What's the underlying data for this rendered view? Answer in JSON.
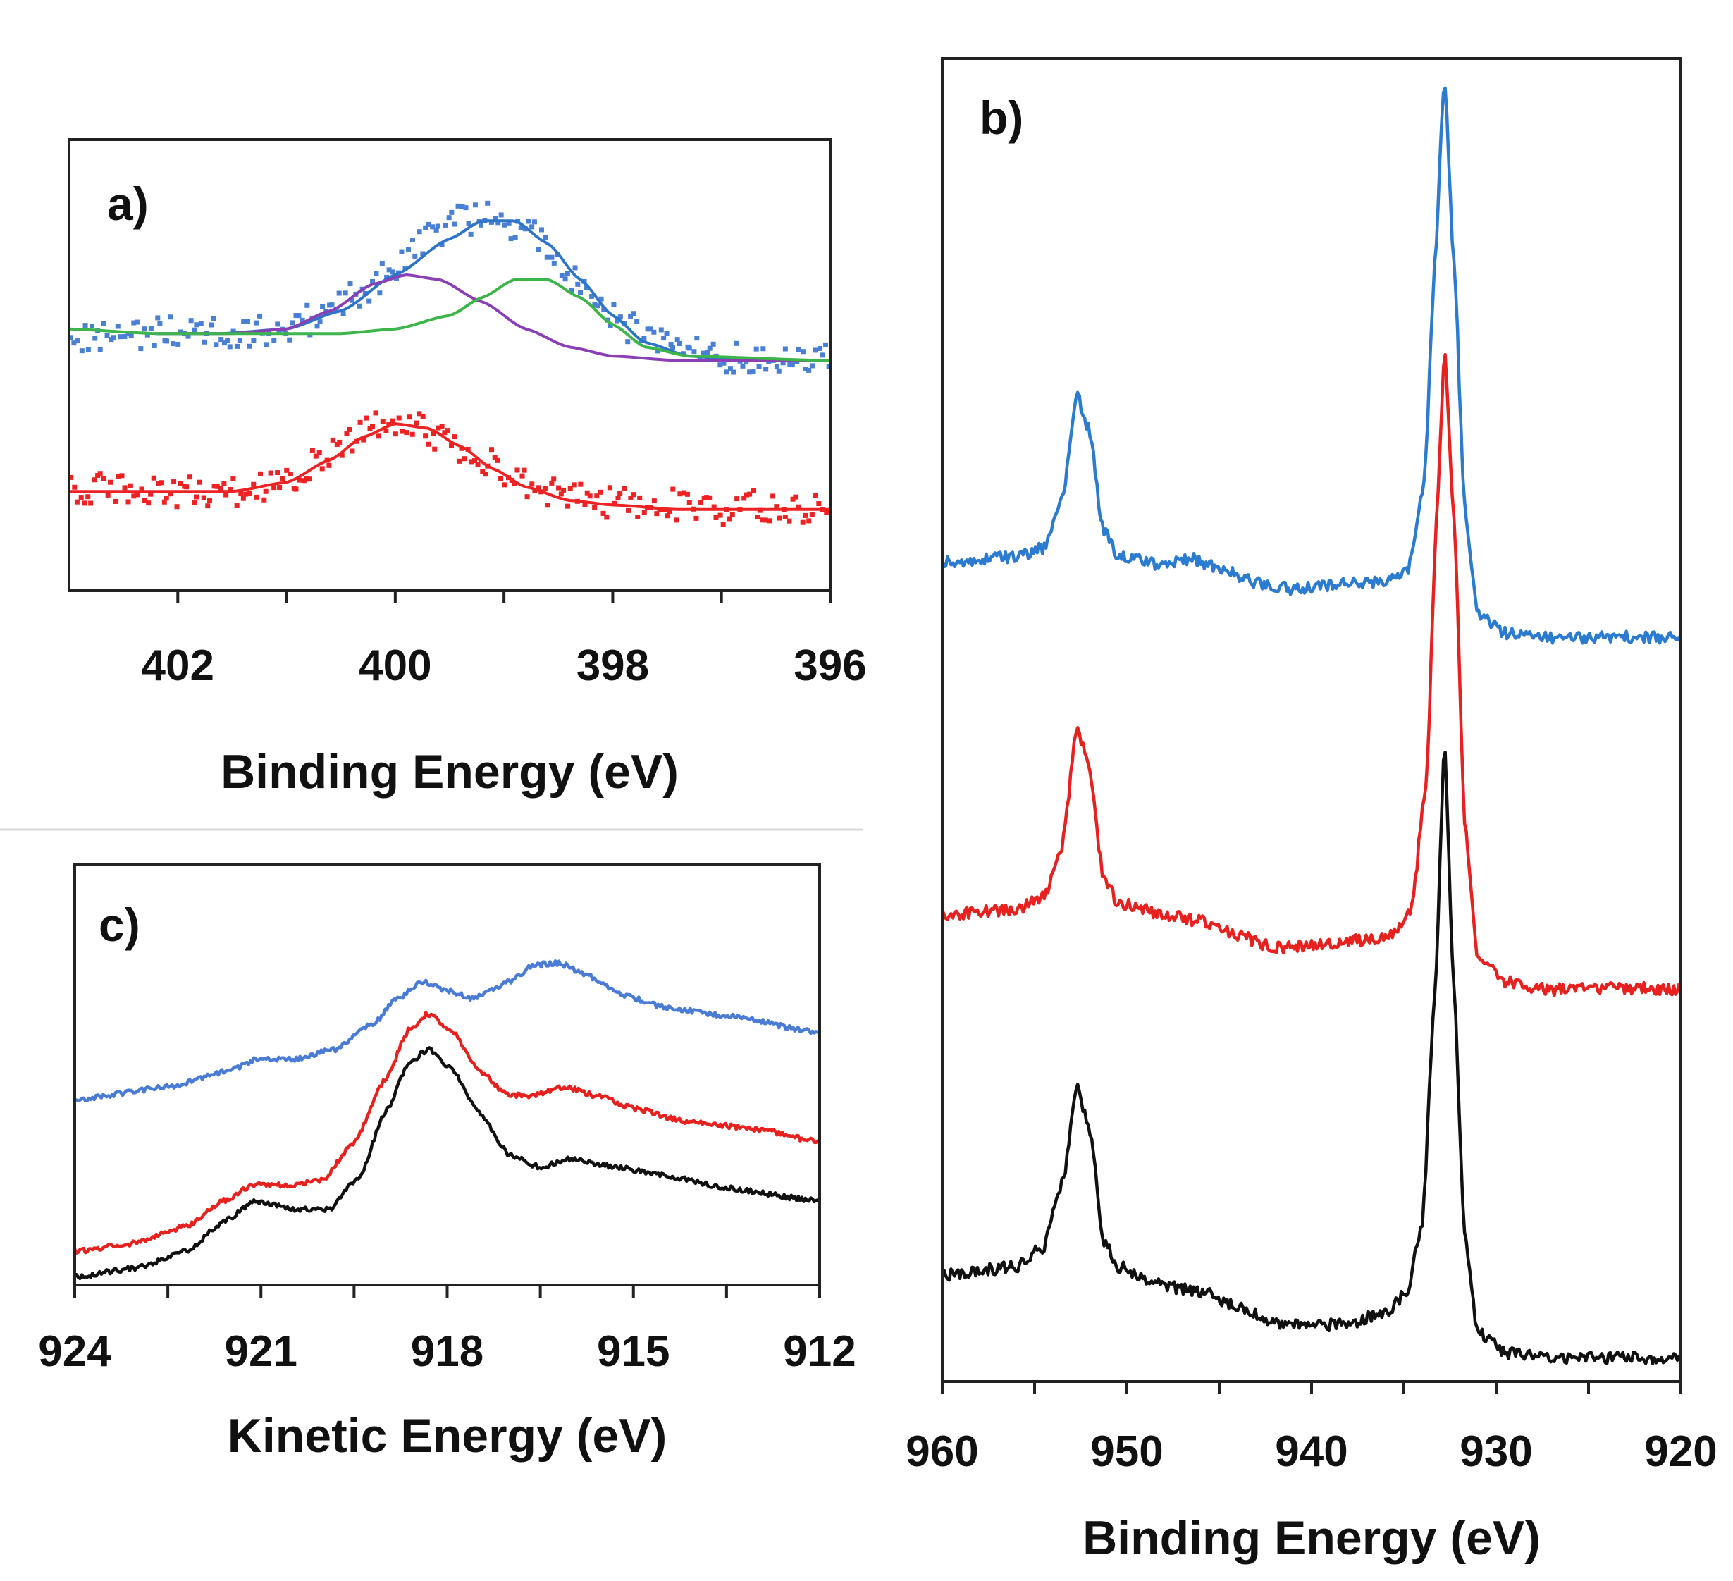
{
  "chart_data": [
    {
      "id": "a",
      "type": "scatter",
      "panel_label": "a)",
      "xlabel": "Binding Energy (eV)",
      "ylabel": "",
      "x_reversed": true,
      "xlim": [
        403,
        396
      ],
      "xticks": [
        "402",
        "400",
        "398",
        "396"
      ],
      "ylim": [
        0,
        1
      ],
      "y_axis_labels": false,
      "grid": false,
      "series": [
        {
          "name": "upper data",
          "kind": "points",
          "color": "#4a7fd6",
          "points": [
            [
              403.0,
              0.57
            ],
            [
              402.7,
              0.56
            ],
            [
              402.3,
              0.57
            ],
            [
              401.9,
              0.58
            ],
            [
              401.5,
              0.57
            ],
            [
              401.0,
              0.58
            ],
            [
              400.6,
              0.62
            ],
            [
              400.3,
              0.66
            ],
            [
              400.0,
              0.72
            ],
            [
              399.7,
              0.78
            ],
            [
              399.4,
              0.82
            ],
            [
              399.1,
              0.83
            ],
            [
              398.8,
              0.8
            ],
            [
              398.5,
              0.73
            ],
            [
              398.2,
              0.65
            ],
            [
              397.9,
              0.59
            ],
            [
              397.6,
              0.55
            ],
            [
              397.3,
              0.53
            ],
            [
              397.0,
              0.52
            ],
            [
              396.6,
              0.51
            ],
            [
              396.2,
              0.51
            ],
            [
              396.0,
              0.51
            ]
          ]
        },
        {
          "name": "upper envelope fit",
          "kind": "line",
          "color": "#2e75c9",
          "points": [
            [
              402.2,
              0.57
            ],
            [
              401.6,
              0.57
            ],
            [
              401.0,
              0.58
            ],
            [
              400.5,
              0.62
            ],
            [
              400.0,
              0.7
            ],
            [
              399.5,
              0.78
            ],
            [
              399.2,
              0.82
            ],
            [
              398.9,
              0.82
            ],
            [
              398.6,
              0.77
            ],
            [
              398.3,
              0.69
            ],
            [
              398.0,
              0.61
            ],
            [
              397.7,
              0.55
            ],
            [
              397.3,
              0.52
            ],
            [
              396.8,
              0.51
            ],
            [
              396.0,
              0.51
            ]
          ]
        },
        {
          "name": "upper component 1",
          "kind": "line",
          "color": "#8a3fb5",
          "points": [
            [
              402.2,
              0.57
            ],
            [
              401.5,
              0.57
            ],
            [
              401.0,
              0.58
            ],
            [
              400.6,
              0.62
            ],
            [
              400.2,
              0.68
            ],
            [
              399.9,
              0.7
            ],
            [
              399.6,
              0.69
            ],
            [
              399.2,
              0.64
            ],
            [
              398.8,
              0.58
            ],
            [
              398.4,
              0.54
            ],
            [
              398.0,
              0.52
            ],
            [
              397.4,
              0.51
            ],
            [
              396.0,
              0.51
            ]
          ]
        },
        {
          "name": "upper component 2",
          "kind": "line",
          "color": "#3cb54a",
          "points": [
            [
              403.0,
              0.58
            ],
            [
              402.2,
              0.57
            ],
            [
              401.5,
              0.57
            ],
            [
              400.5,
              0.57
            ],
            [
              400.0,
              0.58
            ],
            [
              399.5,
              0.61
            ],
            [
              399.2,
              0.65
            ],
            [
              398.9,
              0.69
            ],
            [
              398.6,
              0.69
            ],
            [
              398.3,
              0.65
            ],
            [
              398.0,
              0.59
            ],
            [
              397.7,
              0.54
            ],
            [
              397.3,
              0.52
            ],
            [
              396.0,
              0.51
            ]
          ]
        },
        {
          "name": "lower data",
          "kind": "points",
          "color": "#ee2222",
          "points": [
            [
              403.0,
              0.22
            ],
            [
              402.6,
              0.23
            ],
            [
              402.2,
              0.22
            ],
            [
              401.8,
              0.22
            ],
            [
              401.4,
              0.22
            ],
            [
              401.0,
              0.25
            ],
            [
              400.7,
              0.29
            ],
            [
              400.4,
              0.34
            ],
            [
              400.1,
              0.37
            ],
            [
              399.8,
              0.37
            ],
            [
              399.5,
              0.33
            ],
            [
              399.2,
              0.29
            ],
            [
              398.9,
              0.25
            ],
            [
              398.6,
              0.22
            ],
            [
              398.2,
              0.2
            ],
            [
              397.8,
              0.19
            ],
            [
              397.4,
              0.19
            ],
            [
              397.0,
              0.18
            ],
            [
              396.6,
              0.19
            ],
            [
              396.0,
              0.18
            ]
          ]
        },
        {
          "name": "lower fit",
          "kind": "line",
          "color": "#ee2222",
          "points": [
            [
              403.0,
              0.22
            ],
            [
              402.2,
              0.22
            ],
            [
              401.5,
              0.22
            ],
            [
              401.0,
              0.24
            ],
            [
              400.6,
              0.29
            ],
            [
              400.3,
              0.34
            ],
            [
              400.0,
              0.37
            ],
            [
              399.7,
              0.36
            ],
            [
              399.4,
              0.32
            ],
            [
              399.1,
              0.27
            ],
            [
              398.8,
              0.23
            ],
            [
              398.4,
              0.2
            ],
            [
              398.0,
              0.19
            ],
            [
              397.4,
              0.18
            ],
            [
              396.0,
              0.18
            ]
          ]
        }
      ]
    },
    {
      "id": "b",
      "type": "line",
      "panel_label": "b)",
      "xlabel": "Binding Energy (eV)",
      "ylabel": "",
      "x_reversed": true,
      "xlim": [
        960,
        920
      ],
      "xticks": [
        "960",
        "950",
        "940",
        "930",
        "920"
      ],
      "ylim": [
        0,
        1
      ],
      "y_axis_labels": false,
      "grid": false,
      "series": [
        {
          "name": "blue spectrum",
          "color": "#2b7bd0",
          "points": [
            [
              960,
              0.619
            ],
            [
              956,
              0.623
            ],
            [
              954.5,
              0.63
            ],
            [
              953.5,
              0.67
            ],
            [
              952.7,
              0.745
            ],
            [
              952.0,
              0.718
            ],
            [
              951.3,
              0.645
            ],
            [
              950.5,
              0.625
            ],
            [
              948,
              0.617
            ],
            [
              946.5,
              0.622
            ],
            [
              945,
              0.615
            ],
            [
              943,
              0.604
            ],
            [
              941,
              0.599
            ],
            [
              938,
              0.603
            ],
            [
              936,
              0.605
            ],
            [
              934.8,
              0.611
            ],
            [
              933.9,
              0.68
            ],
            [
              933.3,
              0.85
            ],
            [
              932.8,
              0.988
            ],
            [
              932.3,
              0.85
            ],
            [
              931.7,
              0.66
            ],
            [
              931.0,
              0.58
            ],
            [
              929.5,
              0.566
            ],
            [
              927,
              0.562
            ],
            [
              924,
              0.563
            ],
            [
              920,
              0.562
            ]
          ]
        },
        {
          "name": "red spectrum",
          "color": "#e8211e",
          "points": [
            [
              960,
              0.353
            ],
            [
              956,
              0.357
            ],
            [
              954.5,
              0.366
            ],
            [
              953.5,
              0.405
            ],
            [
              952.7,
              0.493
            ],
            [
              952.0,
              0.462
            ],
            [
              951.3,
              0.384
            ],
            [
              950.5,
              0.362
            ],
            [
              948,
              0.353
            ],
            [
              946,
              0.348
            ],
            [
              944,
              0.337
            ],
            [
              942,
              0.328
            ],
            [
              940,
              0.33
            ],
            [
              937,
              0.334
            ],
            [
              935.6,
              0.337
            ],
            [
              934.6,
              0.358
            ],
            [
              933.8,
              0.45
            ],
            [
              933.2,
              0.66
            ],
            [
              932.8,
              0.78
            ],
            [
              932.3,
              0.66
            ],
            [
              931.7,
              0.42
            ],
            [
              931.0,
              0.32
            ],
            [
              929.5,
              0.302
            ],
            [
              927,
              0.296
            ],
            [
              924,
              0.298
            ],
            [
              920,
              0.296
            ]
          ]
        },
        {
          "name": "black spectrum",
          "color": "#111111",
          "points": [
            [
              960,
              0.08
            ],
            [
              956,
              0.087
            ],
            [
              954.5,
              0.102
            ],
            [
              953.5,
              0.15
            ],
            [
              952.7,
              0.221
            ],
            [
              952.0,
              0.19
            ],
            [
              951.3,
              0.108
            ],
            [
              950.5,
              0.087
            ],
            [
              948,
              0.072
            ],
            [
              946,
              0.068
            ],
            [
              944,
              0.057
            ],
            [
              942,
              0.045
            ],
            [
              940,
              0.042
            ],
            [
              938,
              0.044
            ],
            [
              936,
              0.052
            ],
            [
              934.8,
              0.068
            ],
            [
              934.0,
              0.12
            ],
            [
              933.3,
              0.3
            ],
            [
              932.8,
              0.481
            ],
            [
              932.3,
              0.3
            ],
            [
              931.7,
              0.11
            ],
            [
              931.0,
              0.038
            ],
            [
              929.5,
              0.022
            ],
            [
              927,
              0.018
            ],
            [
              924,
              0.018
            ],
            [
              920,
              0.018
            ]
          ]
        }
      ]
    },
    {
      "id": "c",
      "type": "line",
      "panel_label": "c)",
      "xlabel": "Kinetic Energy (eV)",
      "ylabel": "",
      "x_reversed": true,
      "xlim": [
        924,
        912
      ],
      "xticks": [
        "924",
        "921",
        "918",
        "915",
        "912"
      ],
      "ylim": [
        0,
        1
      ],
      "y_axis_labels": false,
      "grid": false,
      "series": [
        {
          "name": "blue spectrum",
          "color": "#4a7cd6",
          "points": [
            [
              924,
              0.44
            ],
            [
              922.5,
              0.47
            ],
            [
              921.5,
              0.51
            ],
            [
              921.0,
              0.54
            ],
            [
              920.5,
              0.535
            ],
            [
              919.8,
              0.56
            ],
            [
              919.2,
              0.62
            ],
            [
              918.8,
              0.68
            ],
            [
              918.4,
              0.72
            ],
            [
              918.0,
              0.7
            ],
            [
              917.6,
              0.68
            ],
            [
              917.0,
              0.72
            ],
            [
              916.6,
              0.76
            ],
            [
              916.2,
              0.765
            ],
            [
              915.8,
              0.74
            ],
            [
              915.2,
              0.69
            ],
            [
              914.5,
              0.66
            ],
            [
              913.5,
              0.64
            ],
            [
              912,
              0.6
            ]
          ]
        },
        {
          "name": "red spectrum",
          "color": "#e8211e",
          "points": [
            [
              924,
              0.08
            ],
            [
              923,
              0.1
            ],
            [
              922.2,
              0.14
            ],
            [
              921.6,
              0.2
            ],
            [
              921.1,
              0.24
            ],
            [
              920.5,
              0.235
            ],
            [
              920.0,
              0.25
            ],
            [
              919.5,
              0.34
            ],
            [
              919.0,
              0.49
            ],
            [
              918.6,
              0.61
            ],
            [
              918.3,
              0.645
            ],
            [
              917.9,
              0.6
            ],
            [
              917.5,
              0.51
            ],
            [
              917.0,
              0.45
            ],
            [
              916.6,
              0.45
            ],
            [
              916.1,
              0.47
            ],
            [
              915.6,
              0.45
            ],
            [
              915.0,
              0.42
            ],
            [
              914.2,
              0.39
            ],
            [
              913.0,
              0.37
            ],
            [
              912,
              0.34
            ]
          ]
        },
        {
          "name": "black spectrum",
          "color": "#111111",
          "points": [
            [
              924,
              0.02
            ],
            [
              923,
              0.04
            ],
            [
              922.2,
              0.08
            ],
            [
              921.6,
              0.15
            ],
            [
              921.1,
              0.2
            ],
            [
              920.5,
              0.18
            ],
            [
              919.9,
              0.18
            ],
            [
              919.4,
              0.26
            ],
            [
              919.0,
              0.41
            ],
            [
              918.6,
              0.53
            ],
            [
              918.3,
              0.56
            ],
            [
              917.9,
              0.51
            ],
            [
              917.5,
              0.41
            ],
            [
              917.0,
              0.31
            ],
            [
              916.5,
              0.28
            ],
            [
              916.0,
              0.3
            ],
            [
              915.3,
              0.28
            ],
            [
              914.5,
              0.26
            ],
            [
              913.5,
              0.23
            ],
            [
              912,
              0.2
            ]
          ]
        }
      ]
    }
  ]
}
